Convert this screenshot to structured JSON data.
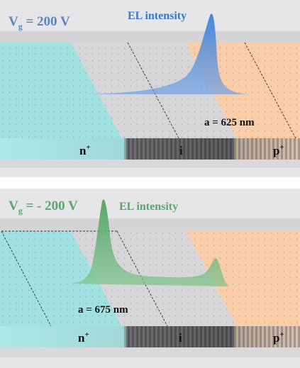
{
  "panels": [
    {
      "voltage_main": "V",
      "voltage_sub": "g",
      "voltage_value": " = 200 V",
      "el_label": "EL intensity",
      "lattice_label": "a = 625 nm",
      "region_n": "n",
      "region_n_sup": "+",
      "region_i": "i",
      "region_p": "p",
      "region_p_sup": "+",
      "label_color": "#3a78c8",
      "peak_color": "#3f7fd6"
    },
    {
      "voltage_main": "V",
      "voltage_sub": "g",
      "voltage_value": " = - 200 V",
      "el_label": "EL intensity",
      "lattice_label": "a = 675 nm",
      "region_n": "n",
      "region_n_sup": "+",
      "region_i": "i",
      "region_p": "p",
      "region_p_sup": "+",
      "label_color": "#5aa76a",
      "peak_color": "#4fa063"
    }
  ],
  "colors": {
    "n_region": "#8fe0de",
    "i_region": "#d6d6d8",
    "p_region": "#fbc89c",
    "substrate": "#7e7e80"
  }
}
